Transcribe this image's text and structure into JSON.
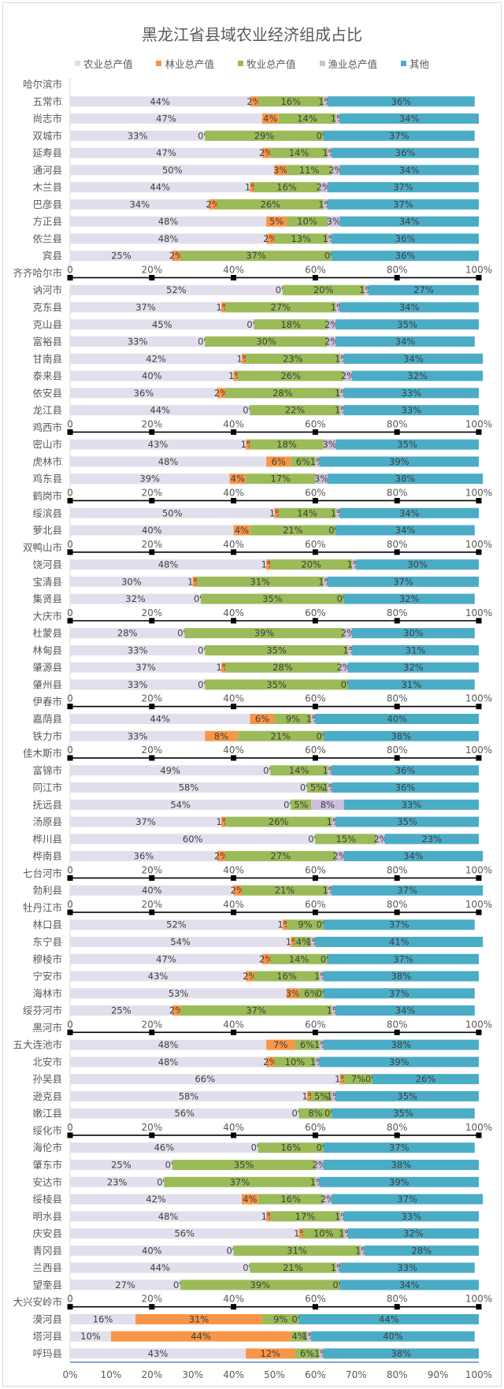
{
  "chart_data": {
    "type": "bar",
    "orientation": "horizontal",
    "stacked": "percent",
    "title": "黑龙江省县域农业经济组成占比",
    "xlabel": "",
    "ylabel": "",
    "xlim": [
      0,
      100
    ],
    "legend_position": "top",
    "colors": {
      "农业总产值": "#e2dfec",
      "林业总产值": "#f79646",
      "牧业总产值": "#9bbb59",
      "渔业总产值": "#ccc1da",
      "其他": "#4bacc6"
    },
    "series_names": [
      "农业总产值",
      "林业总产值",
      "牧业总产值",
      "渔业总产值",
      "其他"
    ],
    "bottom_ticks": [
      "0%",
      "10%",
      "20%",
      "30%",
      "40%",
      "50%",
      "60%",
      "70%",
      "80%",
      "90%",
      "100%"
    ],
    "group_ticks": [
      "0",
      "20%",
      "40%",
      "60%",
      "80%",
      "100%"
    ],
    "rows": [
      {
        "name": "哈尔滨市",
        "group": true
      },
      {
        "name": "五常市",
        "values": [
          44,
          2,
          16,
          1,
          36
        ]
      },
      {
        "name": "尚志市",
        "values": [
          47,
          4,
          14,
          1,
          34
        ]
      },
      {
        "name": "双城市",
        "values": [
          33,
          0,
          29,
          0,
          37
        ]
      },
      {
        "name": "延寿县",
        "values": [
          47,
          2,
          14,
          1,
          36
        ]
      },
      {
        "name": "通河县",
        "values": [
          50,
          3,
          11,
          2,
          34
        ]
      },
      {
        "name": "木兰县",
        "values": [
          44,
          1,
          16,
          2,
          37
        ]
      },
      {
        "name": "巴彦县",
        "values": [
          34,
          2,
          26,
          1,
          37
        ]
      },
      {
        "name": "方正县",
        "values": [
          48,
          5,
          10,
          3,
          34
        ]
      },
      {
        "name": "依兰县",
        "values": [
          48,
          2,
          13,
          1,
          36
        ]
      },
      {
        "name": "宾县",
        "values": [
          25,
          2,
          37,
          0,
          36
        ]
      },
      {
        "name": "齐齐哈尔市",
        "group": true
      },
      {
        "name": "讷河市",
        "values": [
          52,
          0,
          20,
          1,
          27
        ]
      },
      {
        "name": "克东县",
        "values": [
          37,
          1,
          27,
          1,
          34
        ]
      },
      {
        "name": "克山县",
        "values": [
          45,
          0,
          18,
          2,
          35
        ]
      },
      {
        "name": "富裕县",
        "values": [
          33,
          0,
          30,
          2,
          34
        ]
      },
      {
        "name": "甘南县",
        "values": [
          42,
          1,
          23,
          1,
          34
        ]
      },
      {
        "name": "泰来县",
        "values": [
          40,
          1,
          26,
          2,
          32
        ]
      },
      {
        "name": "依安县",
        "values": [
          36,
          2,
          28,
          1,
          33
        ]
      },
      {
        "name": "龙江县",
        "values": [
          44,
          0,
          22,
          1,
          33
        ]
      },
      {
        "name": "鸡西市",
        "group": true
      },
      {
        "name": "密山市",
        "values": [
          43,
          1,
          18,
          3,
          35
        ]
      },
      {
        "name": "虎林市",
        "values": [
          48,
          6,
          6,
          1,
          39
        ]
      },
      {
        "name": "鸡东县",
        "values": [
          39,
          4,
          17,
          3,
          38
        ]
      },
      {
        "name": "鹤岗市",
        "group": true
      },
      {
        "name": "绥滨县",
        "values": [
          50,
          1,
          14,
          1,
          34
        ]
      },
      {
        "name": "萝北县",
        "values": [
          40,
          4,
          21,
          0,
          34
        ]
      },
      {
        "name": "双鸭山市",
        "group": true
      },
      {
        "name": "饶河县",
        "values": [
          48,
          1,
          20,
          1,
          30
        ]
      },
      {
        "name": "宝清县",
        "values": [
          30,
          1,
          31,
          1,
          37
        ]
      },
      {
        "name": "集贤县",
        "values": [
          32,
          0,
          35,
          0,
          32
        ]
      },
      {
        "name": "大庆市",
        "group": true
      },
      {
        "name": "杜蒙县",
        "values": [
          28,
          0,
          39,
          2,
          30
        ]
      },
      {
        "name": "林甸县",
        "values": [
          33,
          0,
          35,
          1,
          31
        ]
      },
      {
        "name": "肇源县",
        "values": [
          37,
          1,
          28,
          2,
          32
        ]
      },
      {
        "name": "肇州县",
        "values": [
          33,
          0,
          35,
          0,
          31
        ]
      },
      {
        "name": "伊春市",
        "group": true
      },
      {
        "name": "嘉荫县",
        "values": [
          44,
          6,
          9,
          1,
          40
        ]
      },
      {
        "name": "铁力市",
        "values": [
          33,
          8,
          21,
          0,
          38
        ]
      },
      {
        "name": "佳木斯市",
        "group": true
      },
      {
        "name": "富锦市",
        "values": [
          49,
          0,
          14,
          1,
          36
        ]
      },
      {
        "name": "同江市",
        "values": [
          58,
          0,
          5,
          1,
          36
        ]
      },
      {
        "name": "抚远县",
        "values": [
          54,
          0,
          5,
          8,
          33
        ]
      },
      {
        "name": "汤原县",
        "values": [
          37,
          1,
          26,
          1,
          35
        ]
      },
      {
        "name": "桦川县",
        "values": [
          60,
          0,
          15,
          2,
          23
        ]
      },
      {
        "name": "桦南县",
        "values": [
          36,
          2,
          27,
          2,
          34
        ]
      },
      {
        "name": "七台河市",
        "group": true
      },
      {
        "name": "勃利县",
        "values": [
          40,
          2,
          21,
          1,
          37
        ]
      },
      {
        "name": "牡丹江市",
        "group": true
      },
      {
        "name": "林口县",
        "values": [
          52,
          1,
          9,
          0,
          37
        ]
      },
      {
        "name": "东宁县",
        "values": [
          54,
          1,
          4,
          1,
          41
        ]
      },
      {
        "name": "穆棱市",
        "values": [
          47,
          2,
          14,
          0,
          37
        ]
      },
      {
        "name": "宁安市",
        "values": [
          43,
          2,
          16,
          1,
          38
        ]
      },
      {
        "name": "海林市",
        "values": [
          53,
          3,
          6,
          0,
          37
        ]
      },
      {
        "name": "绥芬河市",
        "values": [
          25,
          2,
          37,
          1,
          34
        ]
      },
      {
        "name": "黑河市",
        "group": true
      },
      {
        "name": "五大连池市",
        "values": [
          48,
          7,
          6,
          1,
          38
        ]
      },
      {
        "name": "北安市",
        "values": [
          48,
          2,
          10,
          1,
          39
        ]
      },
      {
        "name": "孙吴县",
        "values": [
          66,
          1,
          7,
          0,
          26
        ]
      },
      {
        "name": "逊克县",
        "values": [
          58,
          1,
          5,
          1,
          35
        ]
      },
      {
        "name": "嫩江县",
        "values": [
          56,
          0,
          8,
          0,
          35
        ]
      },
      {
        "name": "绥化市",
        "group": true
      },
      {
        "name": "海伦市",
        "values": [
          46,
          0,
          16,
          0,
          37
        ]
      },
      {
        "name": "肇东市",
        "values": [
          25,
          0,
          35,
          2,
          38
        ]
      },
      {
        "name": "安达市",
        "values": [
          23,
          0,
          37,
          1,
          39
        ]
      },
      {
        "name": "绥棱县",
        "values": [
          42,
          4,
          16,
          2,
          37
        ]
      },
      {
        "name": "明水县",
        "values": [
          48,
          1,
          17,
          1,
          33
        ]
      },
      {
        "name": "庆安县",
        "values": [
          56,
          1,
          10,
          1,
          32
        ]
      },
      {
        "name": "青冈县",
        "values": [
          40,
          0,
          31,
          1,
          28
        ]
      },
      {
        "name": "兰西县",
        "values": [
          44,
          0,
          21,
          1,
          33
        ]
      },
      {
        "name": "望奎县",
        "values": [
          27,
          0,
          39,
          0,
          34
        ]
      },
      {
        "name": "大兴安岭市",
        "group": true
      },
      {
        "name": "漠河县",
        "values": [
          16,
          31,
          9,
          0,
          44
        ]
      },
      {
        "name": "塔河县",
        "values": [
          10,
          44,
          4,
          1,
          40
        ]
      },
      {
        "name": "呼玛县",
        "values": [
          43,
          12,
          6,
          1,
          38
        ]
      }
    ]
  }
}
